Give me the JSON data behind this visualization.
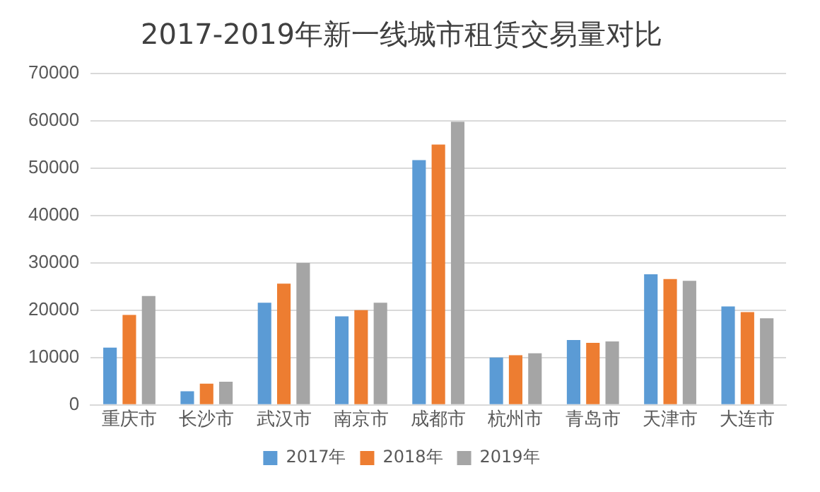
{
  "chart_data": {
    "type": "bar",
    "title": "2017-2019年新一线城市租赁交易量对比",
    "categories": [
      "重庆市",
      "长沙市",
      "武汉市",
      "南京市",
      "成都市",
      "杭州市",
      "青岛市",
      "天津市",
      "大连市"
    ],
    "series": [
      {
        "name": "2017年",
        "color": "#5b9bd5",
        "values": [
          12100,
          2900,
          21600,
          18700,
          51700,
          10000,
          13700,
          27600,
          20800
        ]
      },
      {
        "name": "2018年",
        "color": "#ed7d31",
        "values": [
          19000,
          4500,
          25600,
          20000,
          55000,
          10500,
          13100,
          26600,
          19600
        ]
      },
      {
        "name": "2019年",
        "color": "#a5a5a5",
        "values": [
          23000,
          4900,
          30000,
          21600,
          59800,
          10900,
          13400,
          26200,
          18300
        ]
      }
    ],
    "ylim": [
      0,
      70000
    ],
    "yticks": [
      0,
      10000,
      20000,
      30000,
      40000,
      50000,
      60000,
      70000
    ],
    "grid": "y",
    "legend": "bottom"
  }
}
